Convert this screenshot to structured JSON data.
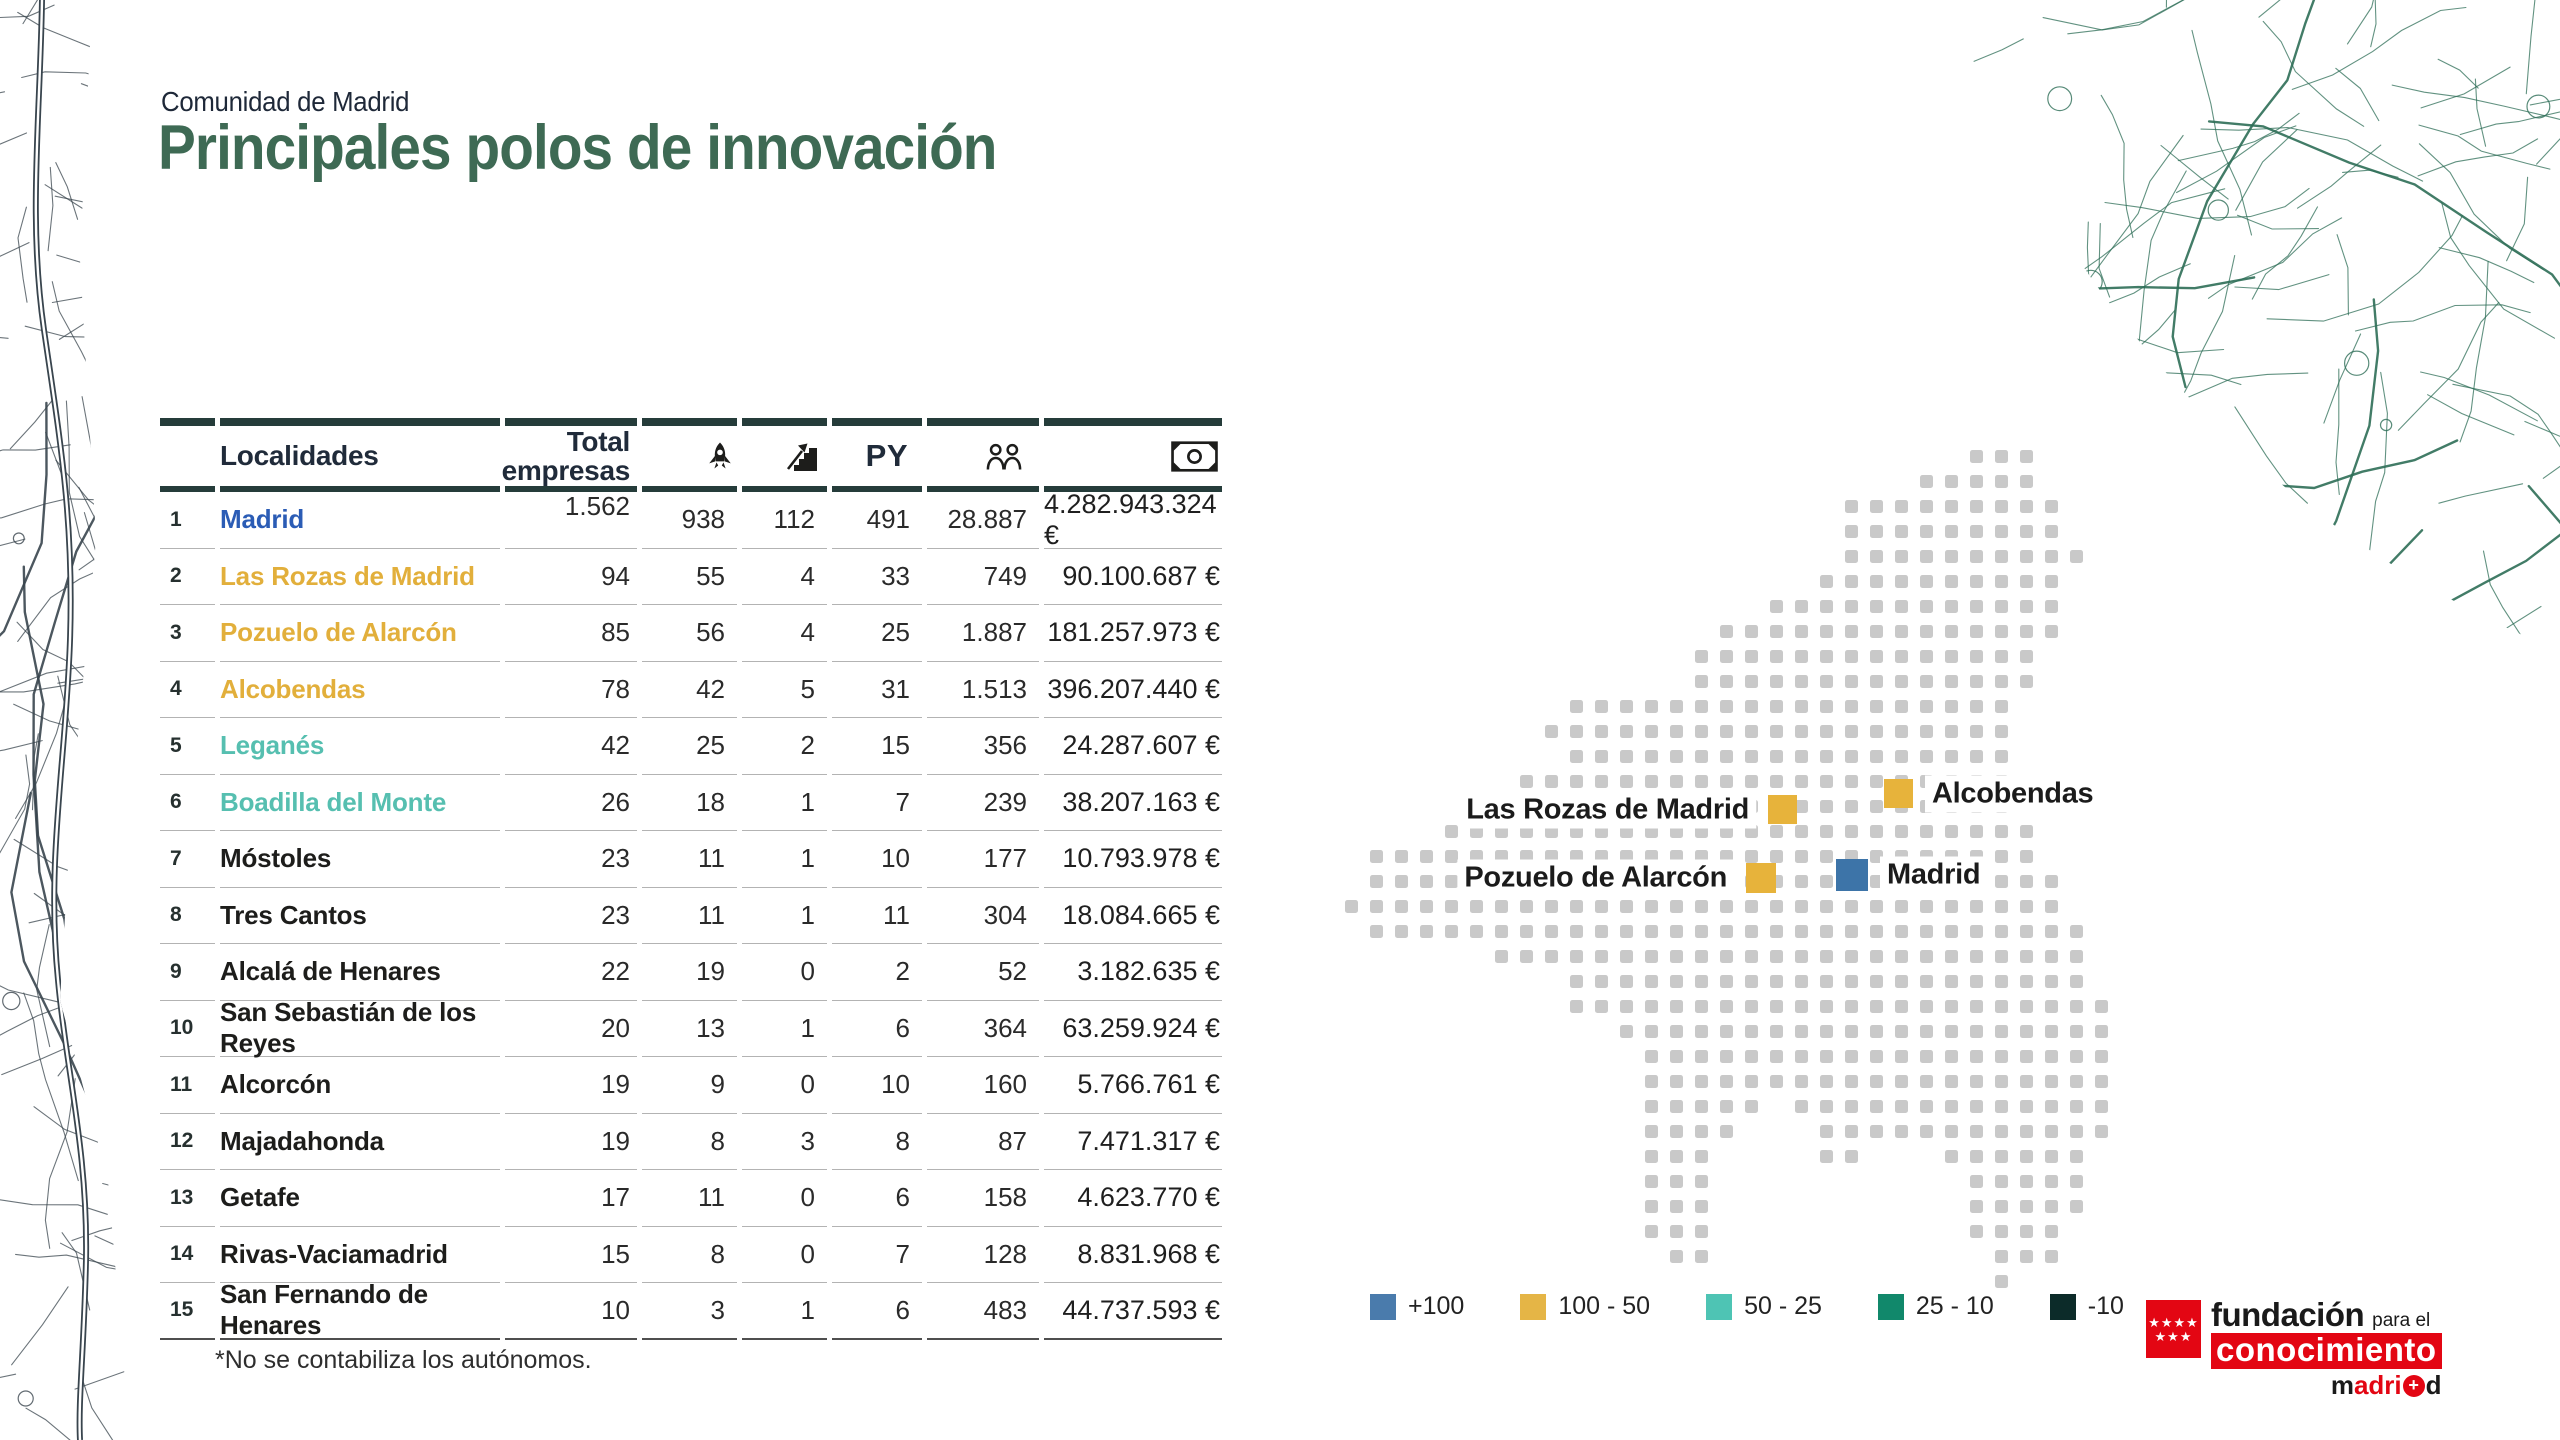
{
  "header": {
    "kicker": "Comunidad de Madrid",
    "title": "Principales polos de innovación"
  },
  "table": {
    "columns": {
      "localities": "Localidades",
      "total": "Total\nempresas",
      "py": "PY",
      "icons": [
        "rocket-icon",
        "growth-stairs-icon",
        "py-label",
        "people-icon",
        "banknote-icon"
      ]
    },
    "rows": [
      {
        "rank": "1",
        "name": "Madrid",
        "color": "blue",
        "values": [
          "1.562",
          "938",
          "112",
          "491",
          "28.887",
          "4.282.943.324 €"
        ]
      },
      {
        "rank": "2",
        "name": "Las Rozas de Madrid",
        "color": "gold",
        "values": [
          "94",
          "55",
          "4",
          "33",
          "749",
          "90.100.687 €"
        ]
      },
      {
        "rank": "3",
        "name": "Pozuelo de Alarcón",
        "color": "gold",
        "values": [
          "85",
          "56",
          "4",
          "25",
          "1.887",
          "181.257.973 €"
        ]
      },
      {
        "rank": "4",
        "name": "Alcobendas",
        "color": "gold",
        "values": [
          "78",
          "42",
          "5",
          "31",
          "1.513",
          "396.207.440 €"
        ]
      },
      {
        "rank": "5",
        "name": "Leganés",
        "color": "teal",
        "values": [
          "42",
          "25",
          "2",
          "15",
          "356",
          "24.287.607 €"
        ]
      },
      {
        "rank": "6",
        "name": "Boadilla del Monte",
        "color": "teal",
        "values": [
          "26",
          "18",
          "1",
          "7",
          "239",
          "38.207.163 €"
        ]
      },
      {
        "rank": "7",
        "name": "Móstoles",
        "color": "dark",
        "values": [
          "23",
          "11",
          "1",
          "10",
          "177",
          "10.793.978 €"
        ]
      },
      {
        "rank": "8",
        "name": "Tres Cantos",
        "color": "dark",
        "values": [
          "23",
          "11",
          "1",
          "11",
          "304",
          "18.084.665 €"
        ]
      },
      {
        "rank": "9",
        "name": "Alcalá de Henares",
        "color": "dark",
        "values": [
          "22",
          "19",
          "0",
          "2",
          "52",
          "3.182.635 €"
        ]
      },
      {
        "rank": "10",
        "name": "San Sebastián de los Reyes",
        "color": "dark",
        "values": [
          "20",
          "13",
          "1",
          "6",
          "364",
          "63.259.924 €"
        ]
      },
      {
        "rank": "11",
        "name": "Alcorcón",
        "color": "dark",
        "values": [
          "19",
          "9",
          "0",
          "10",
          "160",
          "5.766.761 €"
        ]
      },
      {
        "rank": "12",
        "name": "Majadahonda",
        "color": "dark",
        "values": [
          "19",
          "8",
          "3",
          "8",
          "87",
          "7.471.317 €"
        ]
      },
      {
        "rank": "13",
        "name": "Getafe",
        "color": "dark",
        "values": [
          "17",
          "11",
          "0",
          "6",
          "158",
          "4.623.770 €"
        ]
      },
      {
        "rank": "14",
        "name": "Rivas-Vaciamadrid",
        "color": "dark",
        "values": [
          "15",
          "8",
          "0",
          "7",
          "128",
          "8.831.968 €"
        ]
      },
      {
        "rank": "15",
        "name": "San Fernando de Henares",
        "color": "dark",
        "values": [
          "10",
          "3",
          "1",
          "6",
          "483",
          "44.737.593 €"
        ]
      }
    ],
    "footnote": "*No se contabiliza los autónomos."
  },
  "map": {
    "markers": [
      {
        "id": "las_rozas",
        "label": "Las Rozas de Madrid",
        "color": "#E7B33B",
        "side": "left"
      },
      {
        "id": "alcobendas",
        "label": "Alcobendas",
        "color": "#E7B33B",
        "side": "right"
      },
      {
        "id": "pozuelo",
        "label": "Pozuelo de Alarcón",
        "color": "#E7B33B",
        "side": "left"
      },
      {
        "id": "madrid",
        "label": "Madrid",
        "color": "#3D74A8",
        "side": "right"
      }
    ]
  },
  "legend": {
    "items": [
      {
        "label": "+100",
        "color": "#4A7BAC"
      },
      {
        "label": "100 - 50",
        "color": "#E5B546"
      },
      {
        "label": "50 - 25",
        "color": "#4EC4B4"
      },
      {
        "label": "25 - 10",
        "color": "#11886B"
      },
      {
        "label": "-10",
        "color": "#0C2B29"
      }
    ]
  },
  "logo": {
    "top": "fundación",
    "top_small": "para el",
    "middle": "conocimiento",
    "bottom_prefix": "m",
    "bottom_red": "adri",
    "bottom_plus": "+",
    "bottom_suffix": "d"
  },
  "palette": {
    "blue": "#2B5CB5",
    "gold": "#E2AF3B",
    "teal": "#56BFB0",
    "dark": "#1D1D1B",
    "dots": "#C9C9C9",
    "title_green": "#3E6A54",
    "bar_dark": "#253C3A"
  },
  "chart_data": {
    "type": "table",
    "title": "Principales polos de innovación — Comunidad de Madrid",
    "columns": [
      "rank",
      "localidad",
      "total_empresas",
      "rocket_icon_col",
      "growth_icon_col",
      "PY",
      "people_icon_col",
      "inversion_eur"
    ],
    "rows": [
      [
        1,
        "Madrid",
        1562,
        938,
        112,
        491,
        28887,
        "4.282.943.324 €"
      ],
      [
        2,
        "Las Rozas de Madrid",
        94,
        55,
        4,
        33,
        749,
        "90.100.687 €"
      ],
      [
        3,
        "Pozuelo de Alarcón",
        85,
        56,
        4,
        25,
        1887,
        "181.257.973 €"
      ],
      [
        4,
        "Alcobendas",
        78,
        42,
        5,
        31,
        1513,
        "396.207.440 €"
      ],
      [
        5,
        "Leganés",
        42,
        25,
        2,
        15,
        356,
        "24.287.607 €"
      ],
      [
        6,
        "Boadilla del Monte",
        26,
        18,
        1,
        7,
        239,
        "38.207.163 €"
      ],
      [
        7,
        "Móstoles",
        23,
        11,
        1,
        10,
        177,
        "10.793.978 €"
      ],
      [
        8,
        "Tres Cantos",
        23,
        11,
        1,
        11,
        304,
        "18.084.665 €"
      ],
      [
        9,
        "Alcalá de Henares",
        22,
        19,
        0,
        2,
        52,
        "3.182.635 €"
      ],
      [
        10,
        "San Sebastián de los Reyes",
        20,
        13,
        1,
        6,
        364,
        "63.259.924 €"
      ],
      [
        11,
        "Alcorcón",
        19,
        9,
        0,
        10,
        160,
        "5.766.761 €"
      ],
      [
        12,
        "Majadahonda",
        19,
        8,
        3,
        8,
        87,
        "7.471.317 €"
      ],
      [
        13,
        "Getafe",
        17,
        11,
        0,
        6,
        158,
        "4.623.770 €"
      ],
      [
        14,
        "Rivas-Vaciamadrid",
        15,
        8,
        0,
        7,
        128,
        "8.831.968 €"
      ],
      [
        15,
        "San Fernando de Henares",
        10,
        3,
        1,
        6,
        483,
        "44.737.593 €"
      ]
    ],
    "map_markers": [
      "Las Rozas de Madrid",
      "Alcobendas",
      "Pozuelo de Alarcón",
      "Madrid"
    ],
    "legend_bins": [
      "+100",
      "100 - 50",
      "50 - 25",
      "25 - 10",
      "-10"
    ],
    "footnote": "*No se contabiliza los autónomos."
  }
}
